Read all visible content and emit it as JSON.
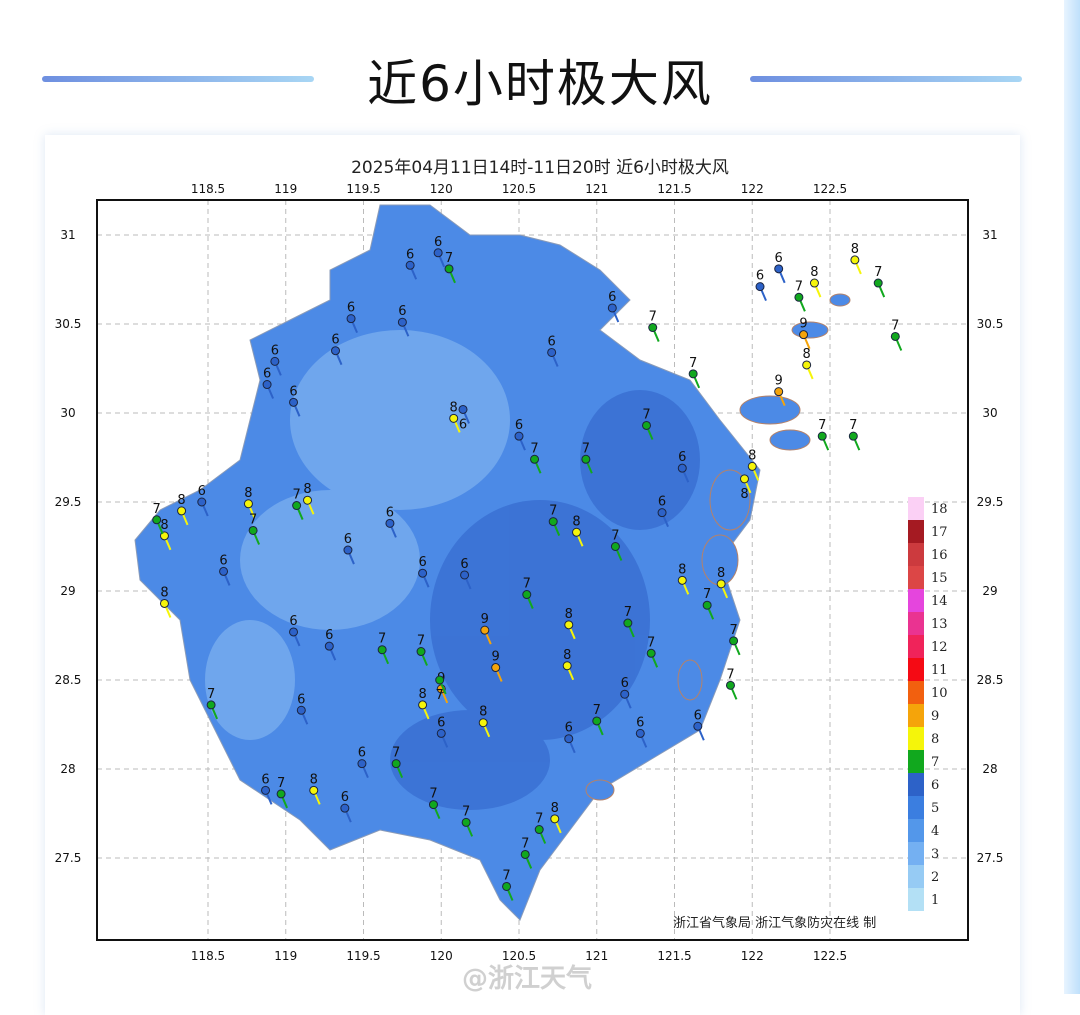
{
  "header": {
    "title": "近6小时极大风"
  },
  "map": {
    "title": "2025年04月11日14时-11日20时  近6小时极大风",
    "lon_ticks": [
      "118.5",
      "119",
      "119.5",
      "120",
      "120.5",
      "121",
      "121.5",
      "122",
      "122.5"
    ],
    "lat_ticks": [
      "31",
      "30.5",
      "30",
      "29.5",
      "29",
      "28.5",
      "28",
      "27.5"
    ],
    "credit": "浙江省气象局  浙江气象防灾在线  制",
    "legend": [
      {
        "label": "18",
        "color": "#fbd0f5"
      },
      {
        "label": "17",
        "color": "#a51a22"
      },
      {
        "label": "16",
        "color": "#cc3a3e"
      },
      {
        "label": "15",
        "color": "#dc4646"
      },
      {
        "label": "14",
        "color": "#e545dd"
      },
      {
        "label": "13",
        "color": "#ea3391"
      },
      {
        "label": "12",
        "color": "#f0235a"
      },
      {
        "label": "11",
        "color": "#f50a14"
      },
      {
        "label": "10",
        "color": "#f2600f"
      },
      {
        "label": "9",
        "color": "#f5a40a"
      },
      {
        "label": "8",
        "color": "#f5f50a"
      },
      {
        "label": "7",
        "color": "#11a81e"
      },
      {
        "label": "6",
        "color": "#2d62c8"
      },
      {
        "label": "5",
        "color": "#3b7ee0"
      },
      {
        "label": "4",
        "color": "#5397ea"
      },
      {
        "label": "3",
        "color": "#74b0f2"
      },
      {
        "label": "2",
        "color": "#96cbf4"
      },
      {
        "label": "1",
        "color": "#b3e0f5"
      }
    ],
    "stations": [
      {
        "lon": 120.05,
        "lat": 30.81,
        "v": 7
      },
      {
        "lon": 119.98,
        "lat": 30.9,
        "v": 6
      },
      {
        "lon": 119.8,
        "lat": 30.83,
        "v": 6
      },
      {
        "lon": 122.66,
        "lat": 30.86,
        "v": 8
      },
      {
        "lon": 122.81,
        "lat": 30.73,
        "v": 7
      },
      {
        "lon": 122.92,
        "lat": 30.43,
        "v": 7
      },
      {
        "lon": 122.33,
        "lat": 30.44,
        "v": 9
      },
      {
        "lon": 122.17,
        "lat": 30.12,
        "v": 9
      },
      {
        "lon": 122.05,
        "lat": 30.71,
        "v": 6
      },
      {
        "lon": 122.17,
        "lat": 30.81,
        "v": 6
      },
      {
        "lon": 122.4,
        "lat": 30.73,
        "v": 8
      },
      {
        "lon": 122.3,
        "lat": 30.65,
        "v": 7
      },
      {
        "lon": 121.36,
        "lat": 30.48,
        "v": 7
      },
      {
        "lon": 121.1,
        "lat": 30.59,
        "v": 6
      },
      {
        "lon": 120.71,
        "lat": 30.34,
        "v": 6
      },
      {
        "lon": 120.08,
        "lat": 29.97,
        "v": 8
      },
      {
        "lon": 120.14,
        "lat": 30.02,
        "v": 6
      },
      {
        "lon": 119.42,
        "lat": 30.53,
        "v": 6
      },
      {
        "lon": 119.75,
        "lat": 30.51,
        "v": 6
      },
      {
        "lon": 119.32,
        "lat": 30.35,
        "v": 6
      },
      {
        "lon": 118.93,
        "lat": 30.29,
        "v": 6
      },
      {
        "lon": 118.88,
        "lat": 30.16,
        "v": 6
      },
      {
        "lon": 119.05,
        "lat": 30.06,
        "v": 6
      },
      {
        "lon": 118.76,
        "lat": 29.49,
        "v": 8
      },
      {
        "lon": 119.14,
        "lat": 29.51,
        "v": 8
      },
      {
        "lon": 119.07,
        "lat": 29.48,
        "v": 7
      },
      {
        "lon": 118.22,
        "lat": 29.31,
        "v": 8
      },
      {
        "lon": 118.17,
        "lat": 29.4,
        "v": 7
      },
      {
        "lon": 118.33,
        "lat": 29.45,
        "v": 8
      },
      {
        "lon": 118.22,
        "lat": 28.93,
        "v": 8
      },
      {
        "lon": 118.79,
        "lat": 29.34,
        "v": 7
      },
      {
        "lon": 118.46,
        "lat": 29.5,
        "v": 6
      },
      {
        "lon": 118.6,
        "lat": 29.11,
        "v": 6
      },
      {
        "lon": 120.28,
        "lat": 28.78,
        "v": 9
      },
      {
        "lon": 120.35,
        "lat": 28.57,
        "v": 9
      },
      {
        "lon": 120.0,
        "lat": 28.45,
        "v": 9
      },
      {
        "lon": 119.88,
        "lat": 28.36,
        "v": 8
      },
      {
        "lon": 120.81,
        "lat": 28.58,
        "v": 8
      },
      {
        "lon": 120.87,
        "lat": 29.33,
        "v": 8
      },
      {
        "lon": 120.27,
        "lat": 28.26,
        "v": 8
      },
      {
        "lon": 120.73,
        "lat": 27.72,
        "v": 8
      },
      {
        "lon": 119.18,
        "lat": 27.88,
        "v": 8
      },
      {
        "lon": 120.6,
        "lat": 29.74,
        "v": 7
      },
      {
        "lon": 120.72,
        "lat": 29.39,
        "v": 7
      },
      {
        "lon": 120.93,
        "lat": 29.74,
        "v": 7
      },
      {
        "lon": 121.32,
        "lat": 29.93,
        "v": 7
      },
      {
        "lon": 121.12,
        "lat": 29.25,
        "v": 7
      },
      {
        "lon": 121.2,
        "lat": 28.82,
        "v": 7
      },
      {
        "lon": 121.35,
        "lat": 28.65,
        "v": 7
      },
      {
        "lon": 121.71,
        "lat": 28.92,
        "v": 7
      },
      {
        "lon": 121.88,
        "lat": 28.72,
        "v": 7
      },
      {
        "lon": 121.86,
        "lat": 28.47,
        "v": 7
      },
      {
        "lon": 121.55,
        "lat": 29.06,
        "v": 8
      },
      {
        "lon": 121.8,
        "lat": 29.04,
        "v": 8
      },
      {
        "lon": 122.0,
        "lat": 29.7,
        "v": 8
      },
      {
        "lon": 121.95,
        "lat": 29.63,
        "v": 8
      },
      {
        "lon": 122.35,
        "lat": 30.27,
        "v": 8
      },
      {
        "lon": 122.45,
        "lat": 29.87,
        "v": 7
      },
      {
        "lon": 122.65,
        "lat": 29.87,
        "v": 7
      },
      {
        "lon": 121.62,
        "lat": 30.22,
        "v": 7
      },
      {
        "lon": 121.55,
        "lat": 29.69,
        "v": 6
      },
      {
        "lon": 121.42,
        "lat": 29.44,
        "v": 6
      },
      {
        "lon": 120.5,
        "lat": 29.87,
        "v": 6
      },
      {
        "lon": 120.15,
        "lat": 29.09,
        "v": 6
      },
      {
        "lon": 119.88,
        "lat": 29.1,
        "v": 6
      },
      {
        "lon": 119.67,
        "lat": 29.38,
        "v": 6
      },
      {
        "lon": 119.4,
        "lat": 29.23,
        "v": 6
      },
      {
        "lon": 119.05,
        "lat": 28.77,
        "v": 6
      },
      {
        "lon": 119.28,
        "lat": 28.69,
        "v": 6
      },
      {
        "lon": 119.1,
        "lat": 28.33,
        "v": 6
      },
      {
        "lon": 119.49,
        "lat": 28.03,
        "v": 6
      },
      {
        "lon": 119.38,
        "lat": 27.78,
        "v": 6
      },
      {
        "lon": 118.87,
        "lat": 27.88,
        "v": 6
      },
      {
        "lon": 118.97,
        "lat": 27.86,
        "v": 7
      },
      {
        "lon": 118.52,
        "lat": 28.36,
        "v": 7
      },
      {
        "lon": 119.71,
        "lat": 28.03,
        "v": 7
      },
      {
        "lon": 119.95,
        "lat": 27.8,
        "v": 7
      },
      {
        "lon": 120.16,
        "lat": 27.7,
        "v": 7
      },
      {
        "lon": 120.54,
        "lat": 27.52,
        "v": 7
      },
      {
        "lon": 120.42,
        "lat": 27.34,
        "v": 7
      },
      {
        "lon": 120.63,
        "lat": 27.66,
        "v": 7
      },
      {
        "lon": 120.0,
        "lat": 28.2,
        "v": 6
      },
      {
        "lon": 120.82,
        "lat": 28.17,
        "v": 6
      },
      {
        "lon": 121.28,
        "lat": 28.2,
        "v": 6
      },
      {
        "lon": 121.65,
        "lat": 28.24,
        "v": 6
      },
      {
        "lon": 121.0,
        "lat": 28.27,
        "v": 7
      },
      {
        "lon": 121.18,
        "lat": 28.42,
        "v": 6
      },
      {
        "lon": 120.55,
        "lat": 28.98,
        "v": 7
      },
      {
        "lon": 120.82,
        "lat": 28.81,
        "v": 8
      },
      {
        "lon": 119.62,
        "lat": 28.67,
        "v": 7
      },
      {
        "lon": 119.87,
        "lat": 28.66,
        "v": 7
      },
      {
        "lon": 119.99,
        "lat": 28.5,
        "v": 7
      }
    ]
  },
  "watermark": "@浙江天气"
}
